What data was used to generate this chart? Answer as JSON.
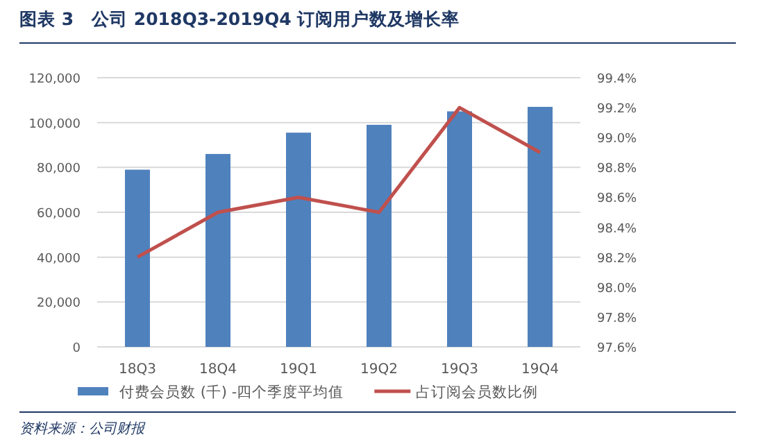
{
  "chart_data": {
    "type": "bar",
    "title": "图表 3　公司 2018Q3-2019Q4 订阅用户数及增长率",
    "categories": [
      "18Q3",
      "18Q4",
      "19Q1",
      "19Q2",
      "19Q3",
      "19Q4"
    ],
    "series": [
      {
        "name": "付费会员数 (千) -四个季度平均值",
        "color": "#4f81bd",
        "values": [
          79000,
          86000,
          95500,
          99000,
          105000,
          107000
        ]
      },
      {
        "name": "占订阅会员数比例",
        "type": "line",
        "axis": "y2",
        "color": "#c0504d",
        "values": [
          98.2,
          98.5,
          98.6,
          98.5,
          99.2,
          98.9
        ]
      }
    ],
    "ylim": [
      0,
      120000
    ],
    "yticks": [
      {
        "value": 0,
        "label": "0"
      },
      {
        "value": 20000,
        "label": "20,000"
      },
      {
        "value": 40000,
        "label": "40,000"
      },
      {
        "value": 60000,
        "label": "60,000"
      },
      {
        "value": 80000,
        "label": "80,000"
      },
      {
        "value": 100000,
        "label": "100,000"
      },
      {
        "value": 120000,
        "label": "120,000"
      }
    ],
    "y2lim": [
      97.6,
      99.4
    ],
    "y2ticks": [
      {
        "value": 97.6,
        "label": "97.6%"
      },
      {
        "value": 97.8,
        "label": "97.8%"
      },
      {
        "value": 98.0,
        "label": "98.0%"
      },
      {
        "value": 98.2,
        "label": "98.2%"
      },
      {
        "value": 98.4,
        "label": "98.4%"
      },
      {
        "value": 98.6,
        "label": "98.6%"
      },
      {
        "value": 98.8,
        "label": "98.8%"
      },
      {
        "value": 99.0,
        "label": "99.0%"
      },
      {
        "value": 99.2,
        "label": "99.2%"
      },
      {
        "value": 99.4,
        "label": "99.4%"
      }
    ],
    "grid": "y",
    "legend": "bottom",
    "annotations": [
      "资料来源：公司财报"
    ]
  }
}
